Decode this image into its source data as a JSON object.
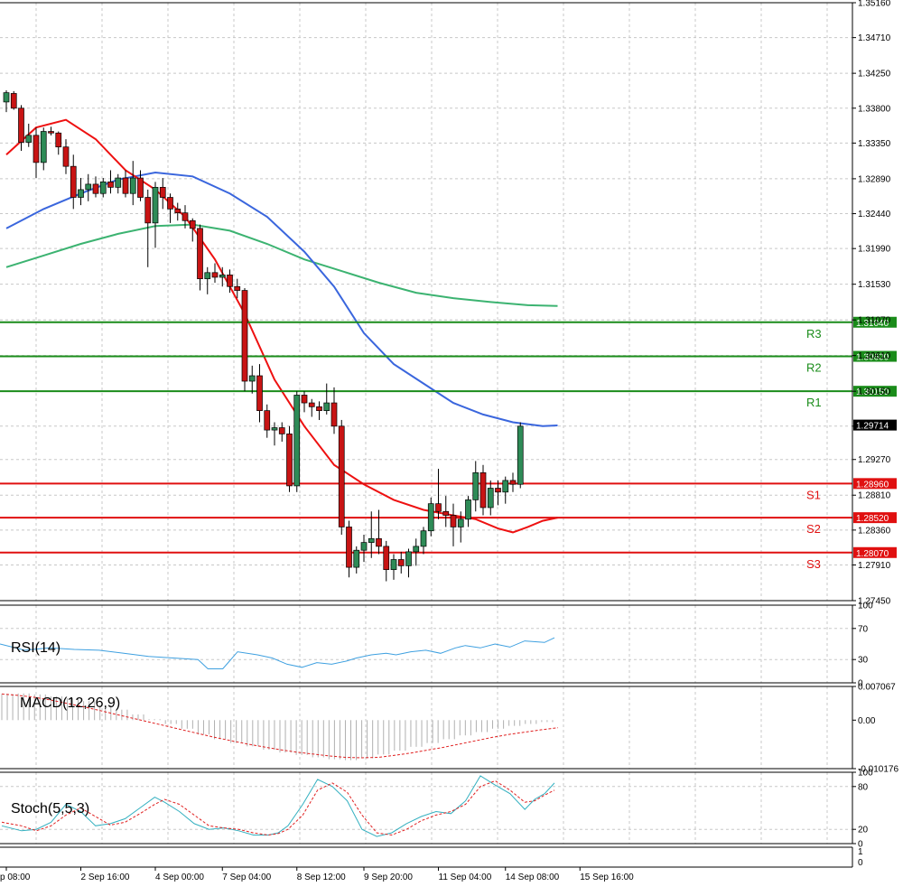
{
  "chart_data": {
    "type": "candlestick",
    "symbol_note": "",
    "colors": {
      "bull": "#2e8b57",
      "bear": "#c81414",
      "ma_fast": "#ee1111",
      "ma_mid": "#3a66dd",
      "ma_slow": "#3cb371",
      "resistance": "#1a8c1a",
      "support": "#e01010",
      "grid": "#c8c8c8",
      "rsi": "#3ea0e0",
      "macd_signal": "#e02020",
      "macd_hist": "#b0b0b0",
      "stoch_main": "#33b0c0",
      "stoch_signal": "#e02020",
      "current_price_bg": "#000000"
    },
    "price_axis": {
      "ylim": [
        1.2745,
        1.3516
      ],
      "ticks": [
        "1.35160",
        "1.34710",
        "1.34250",
        "1.33800",
        "1.33350",
        "1.32890",
        "1.32440",
        "1.31990",
        "1.31530",
        "1.31070",
        "1.30610",
        "1.30150",
        "1.29700",
        "1.29270",
        "1.28810",
        "1.28360",
        "1.27910",
        "1.27450"
      ]
    },
    "current_price": "1.29714",
    "levels": [
      {
        "name": "R3",
        "value": 1.3104,
        "label": "1.31040",
        "kind": "resistance"
      },
      {
        "name": "R2",
        "value": 1.306,
        "label": "1.30600",
        "kind": "resistance"
      },
      {
        "name": "R1",
        "value": 1.3015,
        "label": "1.30150",
        "kind": "resistance"
      },
      {
        "name": "S1",
        "value": 1.2896,
        "label": "1.28960",
        "kind": "support"
      },
      {
        "name": "S2",
        "value": 1.2852,
        "label": "1.28520",
        "kind": "support"
      },
      {
        "name": "S3",
        "value": 1.2807,
        "label": "1.28070",
        "kind": "support"
      }
    ],
    "x_labels": [
      {
        "i": 0,
        "text": "p 08:00"
      },
      {
        "i": 10,
        "text": "2 Sep 16:00"
      },
      {
        "i": 20,
        "text": "4 Sep 00:00"
      },
      {
        "i": 29,
        "text": "7 Sep 04:00"
      },
      {
        "i": 39,
        "text": "8 Sep 12:00"
      },
      {
        "i": 48,
        "text": "9 Sep 20:00"
      },
      {
        "i": 58,
        "text": "11 Sep 04:00"
      },
      {
        "i": 67,
        "text": "14 Sep 08:00"
      },
      {
        "i": 77,
        "text": "15 Sep 16:00"
      }
    ],
    "candles": [
      [
        1.3388,
        1.3403,
        1.3375,
        1.34
      ],
      [
        1.3399,
        1.3402,
        1.3378,
        1.338
      ],
      [
        1.338,
        1.3384,
        1.3325,
        1.3336
      ],
      [
        1.3336,
        1.336,
        1.333,
        1.3345
      ],
      [
        1.3345,
        1.3355,
        1.329,
        1.331
      ],
      [
        1.331,
        1.3355,
        1.33,
        1.335
      ],
      [
        1.335,
        1.3356,
        1.3345,
        1.3348
      ],
      [
        1.3348,
        1.335,
        1.332,
        1.333
      ],
      [
        1.333,
        1.334,
        1.3295,
        1.3305
      ],
      [
        1.3305,
        1.332,
        1.325,
        1.3265
      ],
      [
        1.3265,
        1.329,
        1.3255,
        1.3275
      ],
      [
        1.3275,
        1.3295,
        1.326,
        1.3282
      ],
      [
        1.3282,
        1.3292,
        1.3265,
        1.327
      ],
      [
        1.327,
        1.329,
        1.3265,
        1.3285
      ],
      [
        1.3285,
        1.33,
        1.327,
        1.3278
      ],
      [
        1.3278,
        1.3295,
        1.327,
        1.329
      ],
      [
        1.329,
        1.33,
        1.3265,
        1.327
      ],
      [
        1.327,
        1.3312,
        1.3255,
        1.329
      ],
      [
        1.329,
        1.33,
        1.326,
        1.3265
      ],
      [
        1.3265,
        1.3275,
        1.3175,
        1.3232
      ],
      [
        1.3232,
        1.3285,
        1.32,
        1.3278
      ],
      [
        1.3278,
        1.329,
        1.325,
        1.3265
      ],
      [
        1.3265,
        1.327,
        1.3232,
        1.325
      ],
      [
        1.325,
        1.3258,
        1.3235,
        1.3245
      ],
      [
        1.3245,
        1.3255,
        1.3225,
        1.3235
      ],
      [
        1.3235,
        1.3238,
        1.3208,
        1.3225
      ],
      [
        1.3225,
        1.323,
        1.3145,
        1.316
      ],
      [
        1.316,
        1.3175,
        1.314,
        1.3168
      ],
      [
        1.3168,
        1.318,
        1.3155,
        1.3162
      ],
      [
        1.3162,
        1.3175,
        1.315,
        1.3165
      ],
      [
        1.3165,
        1.3172,
        1.3142,
        1.315
      ],
      [
        1.315,
        1.316,
        1.3135,
        1.3145
      ],
      [
        1.3145,
        1.3148,
        1.3015,
        1.3028
      ],
      [
        1.3028,
        1.3048,
        1.3012,
        1.3035
      ],
      [
        1.3035,
        1.305,
        1.2975,
        1.299
      ],
      [
        1.299,
        1.2998,
        1.2955,
        1.2965
      ],
      [
        1.2965,
        1.2975,
        1.2945,
        1.2968
      ],
      [
        1.2968,
        1.2975,
        1.295,
        1.296
      ],
      [
        1.296,
        1.297,
        1.2885,
        1.2893
      ],
      [
        1.2893,
        1.3015,
        1.2885,
        1.301
      ],
      [
        1.301,
        1.3015,
        1.2988,
        1.3
      ],
      [
        1.3,
        1.3005,
        1.2982,
        1.2995
      ],
      [
        1.2995,
        1.3002,
        1.2978,
        1.299
      ],
      [
        1.299,
        1.3025,
        1.2985,
        1.3
      ],
      [
        1.3,
        1.302,
        1.296,
        1.297
      ],
      [
        1.297,
        1.2978,
        1.283,
        1.284
      ],
      [
        1.284,
        1.2848,
        1.2775,
        1.2788
      ],
      [
        1.2788,
        1.2815,
        1.278,
        1.281
      ],
      [
        1.281,
        1.283,
        1.2795,
        1.282
      ],
      [
        1.282,
        1.286,
        1.28,
        1.2825
      ],
      [
        1.2825,
        1.2862,
        1.2805,
        1.2815
      ],
      [
        1.2815,
        1.2822,
        1.277,
        1.2785
      ],
      [
        1.2785,
        1.2805,
        1.2772,
        1.2798
      ],
      [
        1.2798,
        1.2808,
        1.278,
        1.279
      ],
      [
        1.279,
        1.2812,
        1.2775,
        1.2808
      ],
      [
        1.2808,
        1.2825,
        1.279,
        1.2815
      ],
      [
        1.2815,
        1.284,
        1.2805,
        1.2835
      ],
      [
        1.2835,
        1.2878,
        1.2828,
        1.287
      ],
      [
        1.287,
        1.2915,
        1.285,
        1.286
      ],
      [
        1.286,
        1.288,
        1.284,
        1.2855
      ],
      [
        1.2855,
        1.287,
        1.2815,
        1.284
      ],
      [
        1.284,
        1.286,
        1.282,
        1.285
      ],
      [
        1.285,
        1.288,
        1.284,
        1.2875
      ],
      [
        1.2875,
        1.2925,
        1.286,
        1.291
      ],
      [
        1.291,
        1.292,
        1.2855,
        1.2865
      ],
      [
        1.2865,
        1.29,
        1.2855,
        1.289
      ],
      [
        1.289,
        1.29,
        1.2868,
        1.2885
      ],
      [
        1.2885,
        1.2905,
        1.287,
        1.29
      ],
      [
        1.29,
        1.291,
        1.2885,
        1.2895
      ],
      [
        1.2895,
        1.2975,
        1.289,
        1.297
      ]
    ],
    "x_dates": [
      "p 08:00",
      "2 Sep 16:00",
      "4 Sep 00:00",
      "7 Sep 04:00",
      "8 Sep 12:00",
      "9 Sep 20:00",
      "11 Sep 04:00",
      "14 Sep 08:00",
      "15 Sep 16:00"
    ],
    "ma_fast": [
      [
        0,
        1.332
      ],
      [
        4,
        1.3355
      ],
      [
        8,
        1.3365
      ],
      [
        12,
        1.334
      ],
      [
        16,
        1.33
      ],
      [
        20,
        1.3275
      ],
      [
        24,
        1.324
      ],
      [
        28,
        1.3185
      ],
      [
        32,
        1.3115
      ],
      [
        36,
        1.303
      ],
      [
        40,
        1.297
      ],
      [
        44,
        1.292
      ],
      [
        48,
        1.2895
      ],
      [
        52,
        1.2875
      ],
      [
        56,
        1.2862
      ],
      [
        60,
        1.2855
      ],
      [
        63,
        1.285
      ],
      [
        66,
        1.2838
      ],
      [
        68,
        1.2833
      ],
      [
        70,
        1.284
      ],
      [
        72,
        1.2848
      ],
      [
        74,
        1.2852
      ]
    ],
    "ma_mid": [
      [
        0,
        1.3225
      ],
      [
        5,
        1.325
      ],
      [
        10,
        1.327
      ],
      [
        15,
        1.3288
      ],
      [
        20,
        1.3297
      ],
      [
        25,
        1.3292
      ],
      [
        30,
        1.327
      ],
      [
        35,
        1.324
      ],
      [
        40,
        1.3195
      ],
      [
        44,
        1.315
      ],
      [
        48,
        1.309
      ],
      [
        52,
        1.305
      ],
      [
        56,
        1.3025
      ],
      [
        60,
        1.3
      ],
      [
        64,
        1.2985
      ],
      [
        68,
        1.2975
      ],
      [
        72,
        1.297
      ],
      [
        74,
        1.2971
      ]
    ],
    "ma_slow": [
      [
        0,
        1.3175
      ],
      [
        5,
        1.319
      ],
      [
        10,
        1.3205
      ],
      [
        15,
        1.3218
      ],
      [
        20,
        1.3228
      ],
      [
        25,
        1.323
      ],
      [
        30,
        1.3222
      ],
      [
        35,
        1.3205
      ],
      [
        40,
        1.3185
      ],
      [
        45,
        1.317
      ],
      [
        50,
        1.3155
      ],
      [
        55,
        1.3142
      ],
      [
        60,
        1.3135
      ],
      [
        65,
        1.313
      ],
      [
        70,
        1.3126
      ],
      [
        74,
        1.3125
      ]
    ],
    "rsi": {
      "title": "RSI(14)",
      "ylim": [
        0,
        100
      ],
      "ticks": [
        "100",
        "70",
        "30",
        "0"
      ],
      "values": [
        [
          0,
          50
        ],
        [
          5,
          42
        ],
        [
          10,
          45
        ],
        [
          15,
          43
        ],
        [
          20,
          42
        ],
        [
          25,
          38
        ],
        [
          30,
          34
        ],
        [
          35,
          32
        ],
        [
          40,
          30
        ],
        [
          42,
          18
        ],
        [
          45,
          18
        ],
        [
          48,
          40
        ],
        [
          52,
          36
        ],
        [
          55,
          32
        ],
        [
          58,
          24
        ],
        [
          61,
          20
        ],
        [
          64,
          26
        ],
        [
          67,
          24
        ],
        [
          70,
          28
        ],
        [
          72,
          32
        ],
        [
          75,
          36
        ],
        [
          78,
          38
        ],
        [
          80,
          36
        ],
        [
          83,
          40
        ],
        [
          86,
          42
        ],
        [
          89,
          38
        ],
        [
          92,
          45
        ],
        [
          94,
          48
        ],
        [
          97,
          45
        ],
        [
          100,
          50
        ],
        [
          103,
          46
        ],
        [
          106,
          54
        ],
        [
          110,
          52
        ],
        [
          112,
          58
        ]
      ]
    },
    "macd": {
      "title": "MACD(12,26,9)",
      "ticks": [
        "0.007067",
        "0.00",
        "-0.010176"
      ],
      "ylim": [
        -0.010176,
        0.007067
      ],
      "hist": [
        0.0055,
        0.0056,
        0.0054,
        0.005,
        0.0046,
        0.004,
        0.0032,
        0.0022,
        0.0012,
        0.0002,
        -0.0008,
        -0.0018,
        -0.003,
        -0.004,
        -0.0048,
        -0.0055,
        -0.0062,
        -0.0068,
        -0.0073,
        -0.0078,
        -0.0082,
        -0.0084,
        -0.008,
        -0.0072,
        -0.0064,
        -0.0056,
        -0.0048,
        -0.004,
        -0.0032,
        -0.0025,
        -0.0018,
        -0.0012,
        -0.0008,
        -0.0004,
        -0.0002
      ],
      "signal": [
        0.0055,
        0.0052,
        0.0048,
        0.0042,
        0.0035,
        0.0028,
        0.002,
        0.0012,
        0.0004,
        -0.0004,
        -0.0012,
        -0.002,
        -0.0028,
        -0.0036,
        -0.0043,
        -0.005,
        -0.0056,
        -0.0062,
        -0.0067,
        -0.0071,
        -0.0075,
        -0.0078,
        -0.0079,
        -0.0078,
        -0.0074,
        -0.0069,
        -0.0063,
        -0.0057,
        -0.005,
        -0.0043,
        -0.0036,
        -0.003,
        -0.0025,
        -0.002,
        -0.0016
      ]
    },
    "stoch": {
      "title": "Stoch(5,5,3)",
      "ylim": [
        0,
        100
      ],
      "ticks": [
        "100",
        "80",
        "20",
        "0"
      ],
      "main": [
        [
          0,
          25
        ],
        [
          4,
          18
        ],
        [
          7,
          20
        ],
        [
          10,
          30
        ],
        [
          13,
          55
        ],
        [
          16,
          45
        ],
        [
          19,
          25
        ],
        [
          22,
          28
        ],
        [
          25,
          35
        ],
        [
          28,
          50
        ],
        [
          31,
          65
        ],
        [
          33,
          58
        ],
        [
          36,
          45
        ],
        [
          39,
          28
        ],
        [
          42,
          20
        ],
        [
          45,
          22
        ],
        [
          48,
          18
        ],
        [
          51,
          12
        ],
        [
          54,
          12
        ],
        [
          56,
          15
        ],
        [
          58,
          25
        ],
        [
          61,
          55
        ],
        [
          64,
          90
        ],
        [
          67,
          80
        ],
        [
          70,
          60
        ],
        [
          73,
          20
        ],
        [
          76,
          10
        ],
        [
          79,
          15
        ],
        [
          82,
          28
        ],
        [
          85,
          38
        ],
        [
          88,
          45
        ],
        [
          91,
          42
        ],
        [
          94,
          60
        ],
        [
          97,
          95
        ],
        [
          100,
          82
        ],
        [
          103,
          70
        ],
        [
          106,
          48
        ],
        [
          108,
          62
        ],
        [
          110,
          70
        ],
        [
          112,
          85
        ]
      ],
      "signal": [
        [
          0,
          30
        ],
        [
          4,
          25
        ],
        [
          7,
          18
        ],
        [
          10,
          25
        ],
        [
          13,
          40
        ],
        [
          16,
          50
        ],
        [
          19,
          38
        ],
        [
          22,
          26
        ],
        [
          25,
          30
        ],
        [
          28,
          42
        ],
        [
          31,
          55
        ],
        [
          33,
          62
        ],
        [
          36,
          55
        ],
        [
          39,
          40
        ],
        [
          42,
          25
        ],
        [
          45,
          22
        ],
        [
          48,
          20
        ],
        [
          51,
          15
        ],
        [
          54,
          12
        ],
        [
          56,
          14
        ],
        [
          58,
          20
        ],
        [
          61,
          40
        ],
        [
          64,
          75
        ],
        [
          67,
          85
        ],
        [
          70,
          72
        ],
        [
          73,
          40
        ],
        [
          76,
          15
        ],
        [
          79,
          12
        ],
        [
          82,
          20
        ],
        [
          85,
          32
        ],
        [
          88,
          40
        ],
        [
          91,
          45
        ],
        [
          94,
          55
        ],
        [
          97,
          80
        ],
        [
          100,
          88
        ],
        [
          103,
          75
        ],
        [
          106,
          58
        ],
        [
          108,
          60
        ],
        [
          110,
          68
        ],
        [
          112,
          75
        ]
      ]
    }
  }
}
